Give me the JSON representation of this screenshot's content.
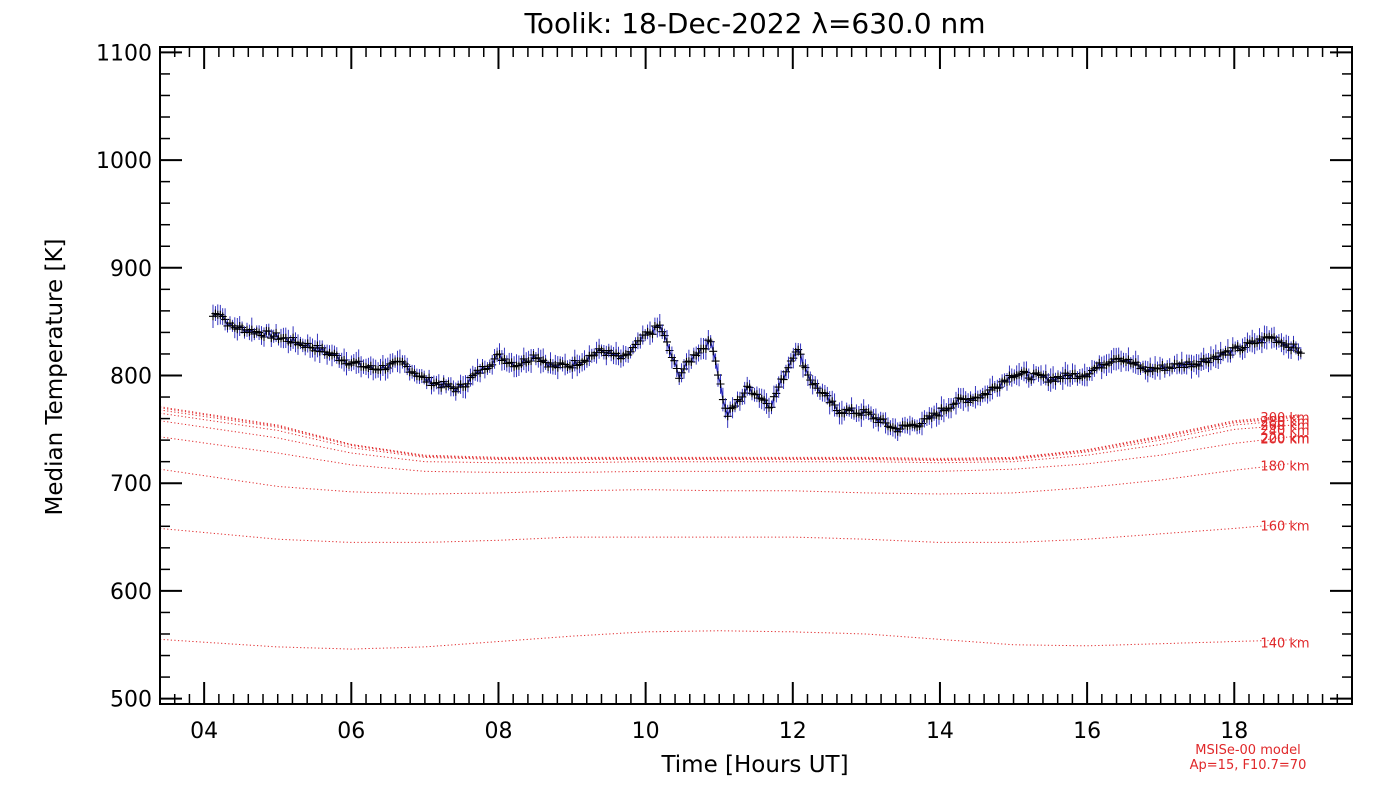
{
  "chart_data": {
    "type": "line",
    "title": "Toolik: 18-Dec-2022 λ=630.0 nm",
    "xlabel": "Time [Hours UT]",
    "ylabel": "Median Temperature [K]",
    "xlim": [
      3.4,
      19.6
    ],
    "ylim": [
      495,
      1105
    ],
    "x_ticks": [
      4,
      6,
      8,
      10,
      12,
      14,
      16,
      18
    ],
    "x_tick_labels": [
      "04",
      "06",
      "08",
      "10",
      "12",
      "14",
      "16",
      "18"
    ],
    "y_ticks": [
      500,
      600,
      700,
      800,
      900,
      1000,
      1100
    ],
    "y_tick_labels": [
      "500",
      "600",
      "700",
      "800",
      "900",
      "1000",
      "1100"
    ],
    "grid": false,
    "measured": {
      "x_range": [
        4.12,
        18.92
      ],
      "key_times": [
        4.12,
        4.2,
        4.35,
        5.0,
        5.5,
        6.0,
        6.3,
        6.7,
        7.0,
        7.45,
        7.8,
        8.0,
        8.25,
        8.5,
        8.75,
        9.0,
        9.4,
        9.7,
        10.0,
        10.2,
        10.45,
        10.7,
        10.9,
        11.1,
        11.4,
        11.7,
        12.05,
        12.25,
        12.6,
        13.0,
        13.4,
        13.8,
        14.2,
        14.6,
        15.0,
        15.5,
        16.0,
        16.4,
        16.8,
        17.5,
        18.0,
        18.5,
        18.92
      ],
      "key_values": [
        855,
        860,
        846,
        836,
        826,
        812,
        806,
        811,
        796,
        787,
        807,
        818,
        810,
        819,
        808,
        810,
        823,
        815,
        837,
        846,
        800,
        822,
        832,
        762,
        789,
        772,
        826,
        795,
        768,
        765,
        750,
        757,
        775,
        782,
        802,
        797,
        802,
        818,
        805,
        812,
        823,
        836,
        822
      ],
      "line_color": "#1f1fb8",
      "marker_color": "#000000"
    },
    "model": {
      "x": [
        3.4,
        5,
        6,
        7,
        8,
        9,
        10,
        11,
        12,
        13,
        14,
        15,
        16,
        17,
        18,
        19
      ],
      "series": [
        {
          "name": "140 km",
          "label": "140 km",
          "values": [
            555,
            548,
            546,
            548,
            553,
            558,
            562,
            563,
            562,
            560,
            555,
            550,
            549,
            551,
            553,
            555
          ]
        },
        {
          "name": "160 km",
          "label": "160 km",
          "values": [
            658,
            648,
            645,
            645,
            647,
            650,
            650,
            650,
            650,
            648,
            645,
            645,
            648,
            653,
            658,
            664
          ]
        },
        {
          "name": "180 km",
          "label": "180 km",
          "values": [
            713,
            697,
            692,
            690,
            691,
            693,
            694,
            693,
            693,
            691,
            690,
            691,
            696,
            703,
            712,
            720
          ]
        },
        {
          "name": "200 km",
          "label": "200 km",
          "values": [
            743,
            728,
            717,
            711,
            710,
            710,
            711,
            711,
            711,
            711,
            711,
            713,
            718,
            726,
            737,
            745
          ]
        },
        {
          "name": "220 km",
          "label": "220 km",
          "values": [
            758,
            742,
            728,
            720,
            719,
            719,
            720,
            720,
            720,
            720,
            719,
            720,
            726,
            736,
            750,
            755
          ]
        },
        {
          "name": "240 km",
          "label": "240 km",
          "values": [
            765,
            749,
            733,
            724,
            722,
            722,
            722,
            722,
            722,
            722,
            721,
            722,
            729,
            740,
            754,
            760
          ]
        },
        {
          "name": "260 km",
          "label": "260 km",
          "values": [
            768,
            752,
            735,
            725,
            723,
            723,
            723,
            723,
            723,
            723,
            722,
            723,
            730,
            742,
            756,
            762
          ]
        },
        {
          "name": "280 km",
          "label": "280 km",
          "values": [
            770,
            753,
            736,
            725,
            723,
            723,
            723,
            723,
            723,
            723,
            722,
            723,
            731,
            743,
            757,
            763
          ]
        },
        {
          "name": "300 km",
          "label": "300 km",
          "values": [
            771,
            754,
            736,
            726,
            724,
            724,
            724,
            724,
            724,
            724,
            723,
            724,
            731,
            744,
            758,
            764
          ]
        }
      ],
      "line_color": "#e0282a",
      "note_line1": "MSISe-00 model",
      "note_line2": "Ap=15, F10.7=70"
    }
  }
}
